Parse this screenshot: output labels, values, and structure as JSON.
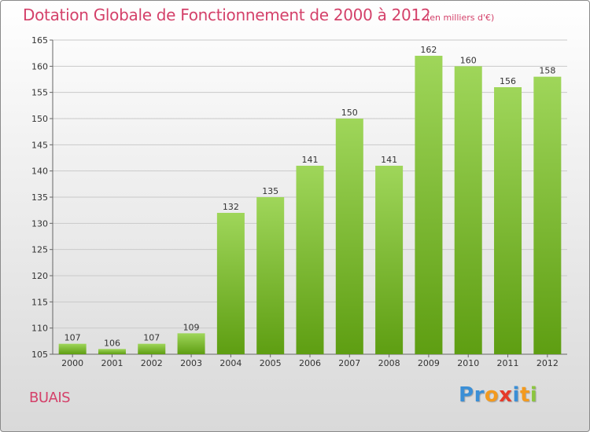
{
  "title": "Dotation Globale de Fonctionnement de 2000 à 2012",
  "subtitle": "(en milliers d'€)",
  "commune": "BUAIS",
  "logo": {
    "letters": [
      "P",
      "r",
      "o",
      "x",
      "i",
      "t",
      "i"
    ],
    "colors": [
      "#3b8fd6",
      "#3b8fd6",
      "#f39a1e",
      "#e63a2a",
      "#3b8fd6",
      "#f39a1e",
      "#8cc63f"
    ]
  },
  "colors": {
    "bar_top": "#9fd65a",
    "bar_bottom": "#5e9e12",
    "title": "#d4416a",
    "grid": "#c9c9c9",
    "axis_text": "#333333"
  },
  "chart_data": {
    "type": "bar",
    "categories": [
      "2000",
      "2001",
      "2002",
      "2003",
      "2004",
      "2005",
      "2006",
      "2007",
      "2008",
      "2009",
      "2010",
      "2011",
      "2012"
    ],
    "values": [
      107,
      106,
      107,
      109,
      132,
      135,
      141,
      150,
      141,
      162,
      160,
      156,
      158
    ],
    "ylim": [
      105,
      165
    ],
    "yticks": [
      105,
      110,
      115,
      120,
      125,
      130,
      135,
      140,
      145,
      150,
      155,
      160,
      165
    ],
    "grid": true,
    "xlabel": "",
    "ylabel": ""
  }
}
